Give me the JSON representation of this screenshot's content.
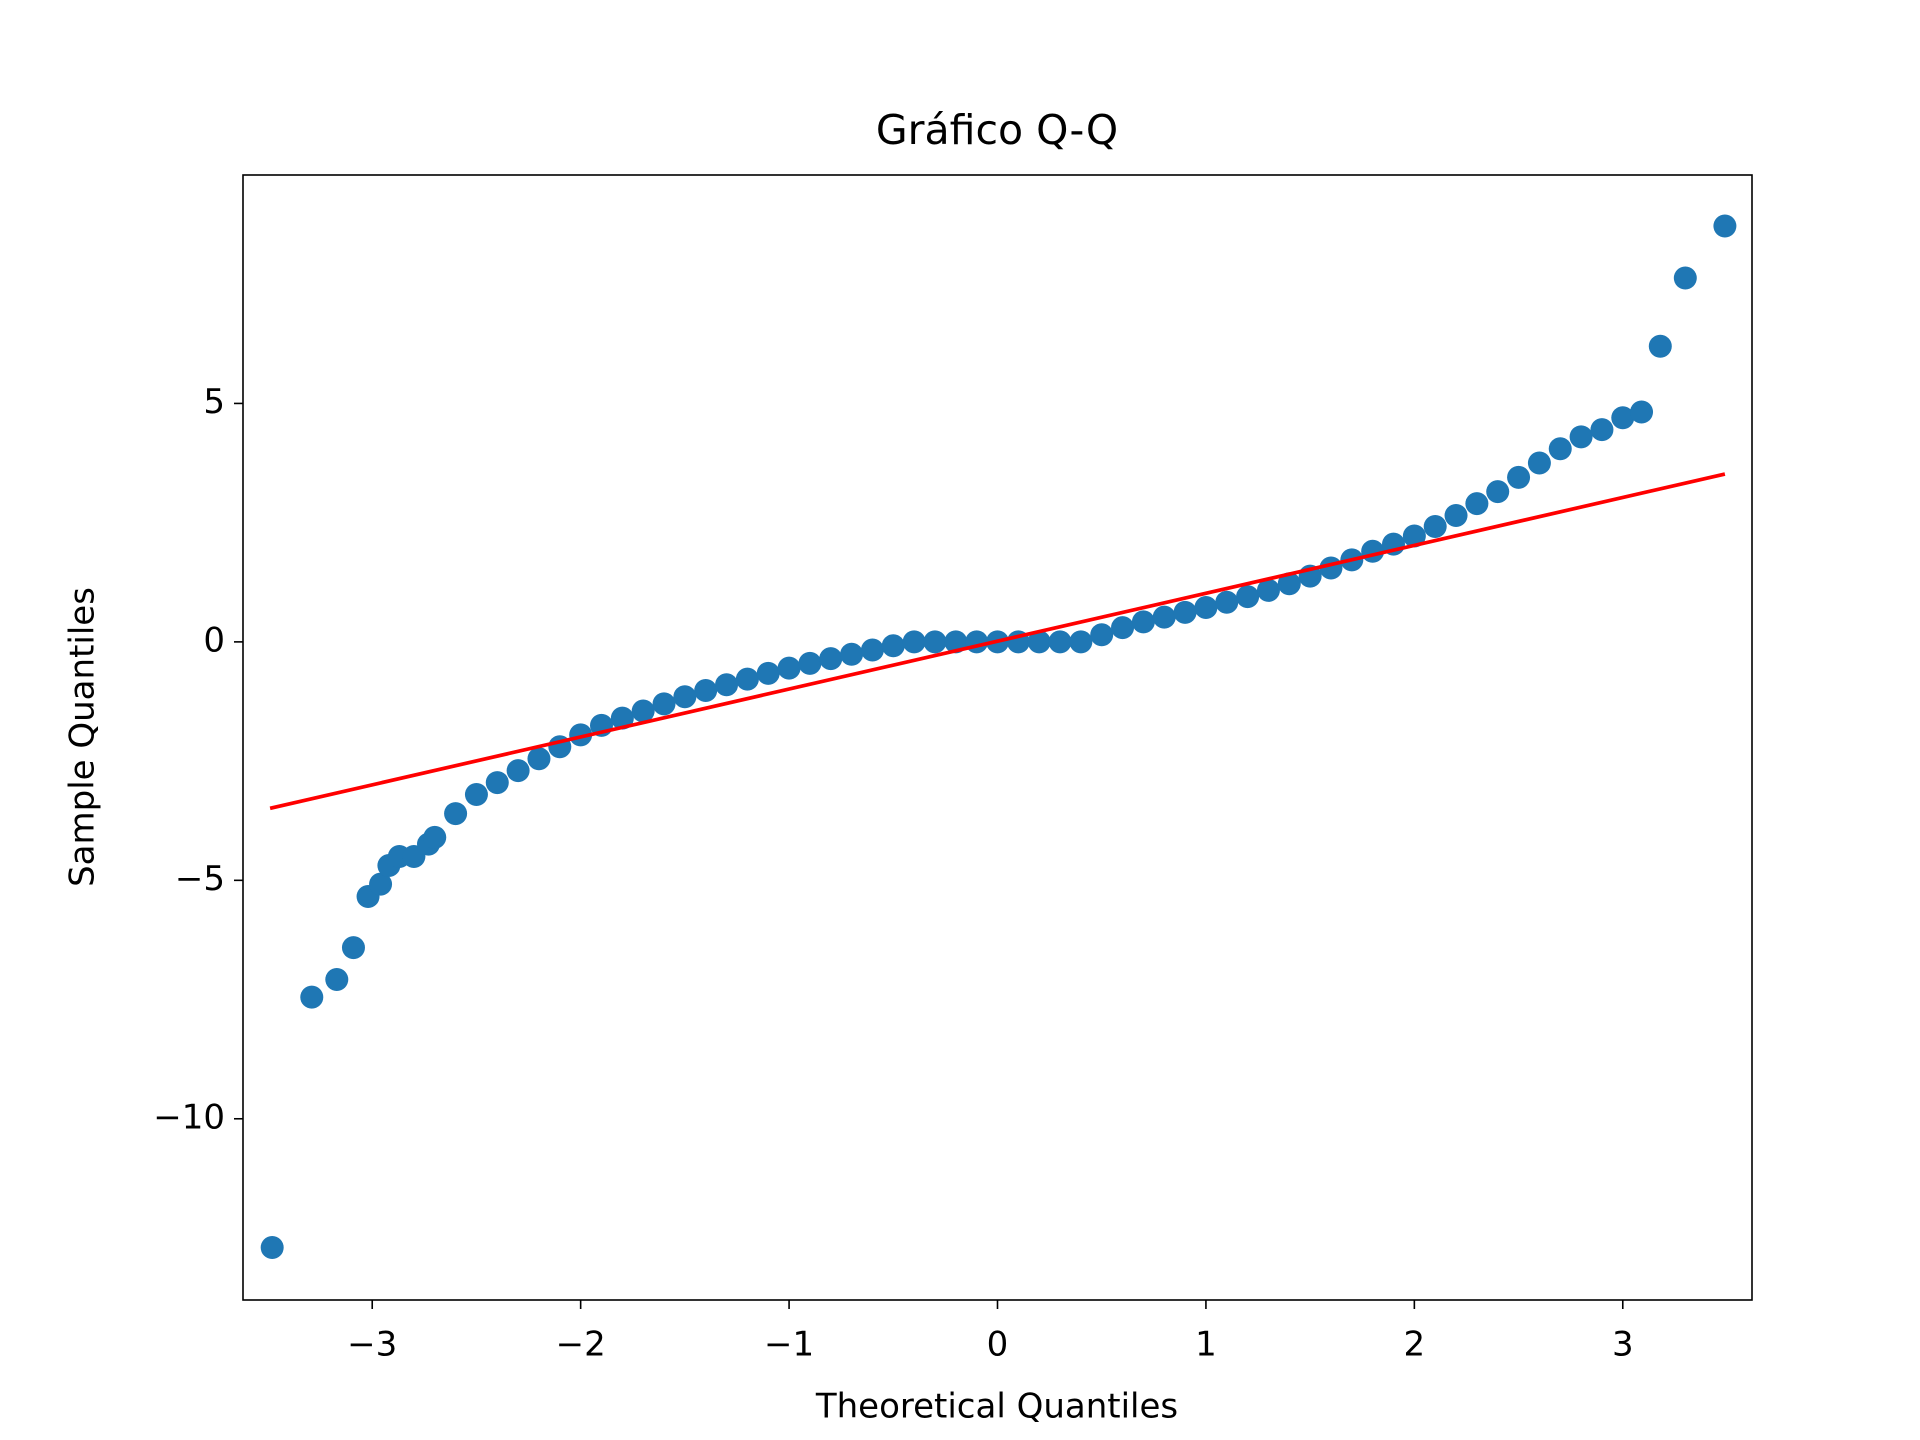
{
  "chart_data": {
    "type": "scatter",
    "title": "Gráfico Q-Q",
    "x_label": "Theoretical Quantiles",
    "y_label": "Sample Quantiles",
    "xlim": [
      -3.62,
      3.62
    ],
    "ylim": [
      -13.8,
      9.79
    ],
    "xticks": [
      {
        "value": -3,
        "label": "−3"
      },
      {
        "value": -2,
        "label": "−2"
      },
      {
        "value": -1,
        "label": "−1"
      },
      0,
      1,
      2,
      3
    ],
    "yticks": [
      {
        "value": -10,
        "label": "−10"
      },
      {
        "value": -5,
        "label": "−5"
      },
      0,
      5
    ],
    "points": {
      "color": "#1f77b4",
      "x": [
        -3.48,
        -3.29,
        -3.17,
        -3.09,
        -3.02,
        -2.96,
        -2.92,
        -2.87,
        -2.8,
        -2.73,
        -2.7,
        -2.6,
        -2.5,
        -2.4,
        -2.3,
        -2.2,
        -2.1,
        -2.0,
        -1.9,
        -1.8,
        -1.7,
        -1.6,
        -1.5,
        -1.4,
        -1.3,
        -1.2,
        -1.1,
        -1.0,
        -0.9,
        -0.8,
        -0.7,
        -0.6,
        -0.5,
        -0.4,
        -0.3,
        -0.2,
        -0.1,
        0,
        0.1,
        0.2,
        0.3,
        0.4,
        0.5,
        0.6,
        0.7,
        0.8,
        0.9,
        1.0,
        1.1,
        1.2,
        1.3,
        1.4,
        1.5,
        1.6,
        1.7,
        1.8,
        1.9,
        2.0,
        2.1,
        2.2,
        2.3,
        2.4,
        2.5,
        2.6,
        2.7,
        2.8,
        2.9,
        3.0,
        3.09,
        3.18,
        3.3,
        3.49
      ],
      "y": [
        -12.7,
        -7.45,
        -7.08,
        -6.41,
        -5.34,
        -5.08,
        -4.69,
        -4.5,
        -4.5,
        -4.24,
        -4.1,
        -3.6,
        -3.2,
        -2.95,
        -2.7,
        -2.45,
        -2.2,
        -1.95,
        -1.75,
        -1.6,
        -1.45,
        -1.3,
        -1.15,
        -1.02,
        -0.9,
        -0.78,
        -0.66,
        -0.55,
        -0.45,
        -0.35,
        -0.26,
        -0.17,
        -0.08,
        0,
        0,
        0,
        0,
        0,
        0,
        0,
        0,
        0,
        0.15,
        0.3,
        0.42,
        0.52,
        0.62,
        0.72,
        0.83,
        0.95,
        1.08,
        1.22,
        1.38,
        1.55,
        1.72,
        1.9,
        2.05,
        2.22,
        2.42,
        2.65,
        2.9,
        3.15,
        3.45,
        3.75,
        4.05,
        4.3,
        4.45,
        4.7,
        4.82,
        6.2,
        7.63,
        8.72
      ]
    },
    "line": {
      "color": "#ff0000",
      "x": [
        -3.49,
        3.49
      ],
      "y": [
        -3.49,
        3.52
      ]
    }
  }
}
